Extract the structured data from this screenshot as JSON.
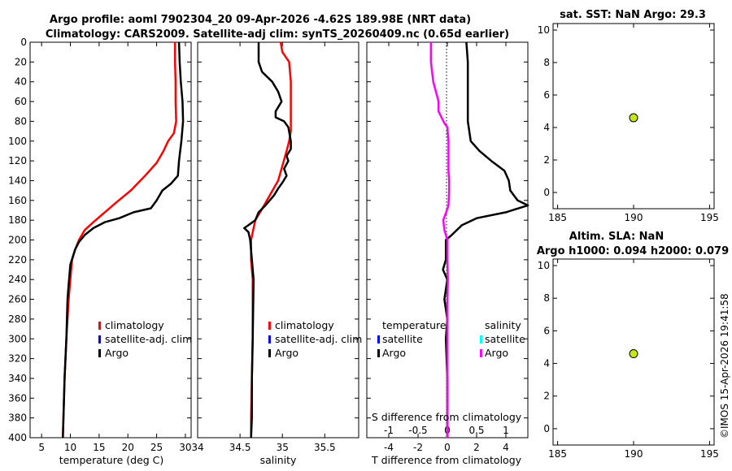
{
  "header": {
    "title_line1": "Argo profile: aoml 7902304_20 09-Apr-2026 -4.62S 189.98E (NRT data)",
    "title_line2": "Climatology: CARS2009. Satellite-adj clim: synTS_20260409.nc (0.65d earlier)"
  },
  "watermark": "©IMOS 15-Apr-2026 19:41:58",
  "colors": {
    "climatology": "#ff0000",
    "satellite": "#0000ff",
    "argo": "#000000",
    "salinity_satellite": "#00ffff",
    "salinity_argo": "#ff00ff",
    "marker_fill": "#c8e614"
  },
  "chart_data": [
    {
      "name": "temperature-profile",
      "type": "line",
      "xlabel": "temperature (deg C)",
      "ylabel": "",
      "xlim": [
        3,
        31
      ],
      "ylim": [
        0,
        400
      ],
      "xticks": [
        5,
        10,
        15,
        20,
        25,
        30
      ],
      "yticks": [
        0,
        20,
        40,
        60,
        80,
        100,
        120,
        140,
        160,
        180,
        200,
        220,
        240,
        260,
        280,
        300,
        320,
        340,
        360,
        380,
        400
      ],
      "legend": [
        "climatology",
        "satellite-adj. clim",
        "Argo"
      ],
      "series": [
        {
          "name": "climatology",
          "points": [
            [
              28.2,
              0
            ],
            [
              28.2,
              20
            ],
            [
              28.3,
              40
            ],
            [
              28.3,
              60
            ],
            [
              28.4,
              80
            ],
            [
              28.0,
              92
            ],
            [
              27.0,
              100
            ],
            [
              26.2,
              110
            ],
            [
              25.0,
              122
            ],
            [
              23.0,
              135
            ],
            [
              20.5,
              150
            ],
            [
              18.0,
              162
            ],
            [
              16.0,
              172
            ],
            [
              14.0,
              182
            ],
            [
              12.5,
              190
            ],
            [
              11.5,
              200
            ],
            [
              10.8,
              210
            ],
            [
              10.3,
              220
            ],
            [
              10.0,
              240
            ],
            [
              9.7,
              260
            ],
            [
              9.3,
              300
            ],
            [
              9.0,
              340
            ],
            [
              8.8,
              380
            ],
            [
              8.7,
              400
            ]
          ]
        },
        {
          "name": "Argo",
          "points": [
            [
              28.9,
              0
            ],
            [
              29.0,
              20
            ],
            [
              29.2,
              40
            ],
            [
              29.5,
              60
            ],
            [
              29.6,
              80
            ],
            [
              29.3,
              100
            ],
            [
              28.9,
              120
            ],
            [
              28.7,
              135
            ],
            [
              27.5,
              143
            ],
            [
              26.0,
              150
            ],
            [
              25.0,
              160
            ],
            [
              24.0,
              168
            ],
            [
              21.0,
              172
            ],
            [
              18.5,
              178
            ],
            [
              16.0,
              182
            ],
            [
              14.0,
              188
            ],
            [
              12.5,
              195
            ],
            [
              11.5,
              202
            ],
            [
              10.8,
              210
            ],
            [
              10.0,
              225
            ],
            [
              9.7,
              245
            ],
            [
              9.5,
              260
            ],
            [
              9.3,
              300
            ],
            [
              9.0,
              340
            ],
            [
              8.8,
              380
            ],
            [
              8.7,
              400
            ]
          ]
        }
      ]
    },
    {
      "name": "salinity-profile",
      "type": "line",
      "xlabel": "salinity",
      "xlim": [
        34,
        35.9
      ],
      "ylim": [
        0,
        400
      ],
      "xticks": [
        34,
        34.5,
        35,
        35.5
      ],
      "legend": [
        "climatology",
        "satellite-adj. clim",
        "Argo"
      ],
      "series": [
        {
          "name": "climatology",
          "points": [
            [
              34.98,
              0
            ],
            [
              35.0,
              10
            ],
            [
              35.08,
              20
            ],
            [
              35.1,
              40
            ],
            [
              35.1,
              60
            ],
            [
              35.1,
              90
            ],
            [
              35.08,
              100
            ],
            [
              35.05,
              110
            ],
            [
              35.0,
              125
            ],
            [
              34.95,
              140
            ],
            [
              34.85,
              155
            ],
            [
              34.75,
              170
            ],
            [
              34.68,
              180
            ],
            [
              34.63,
              200
            ],
            [
              34.63,
              220
            ],
            [
              34.65,
              240
            ],
            [
              34.65,
              300
            ],
            [
              34.64,
              340
            ],
            [
              34.63,
              380
            ],
            [
              34.63,
              400
            ]
          ]
        },
        {
          "name": "Argo",
          "points": [
            [
              34.72,
              0
            ],
            [
              34.72,
              20
            ],
            [
              34.76,
              30
            ],
            [
              34.88,
              40
            ],
            [
              34.95,
              50
            ],
            [
              34.99,
              60
            ],
            [
              34.92,
              70
            ],
            [
              34.92,
              76
            ],
            [
              35.02,
              80
            ],
            [
              35.07,
              86
            ],
            [
              35.1,
              100
            ],
            [
              35.1,
              108
            ],
            [
              35.05,
              115
            ],
            [
              35.07,
              120
            ],
            [
              35.02,
              128
            ],
            [
              35.05,
              135
            ],
            [
              35.0,
              142
            ],
            [
              34.95,
              148
            ],
            [
              34.9,
              155
            ],
            [
              34.8,
              165
            ],
            [
              34.72,
              172
            ],
            [
              34.68,
              180
            ],
            [
              34.6,
              185
            ],
            [
              34.55,
              188
            ],
            [
              34.6,
              192
            ],
            [
              34.62,
              200
            ],
            [
              34.64,
              220
            ],
            [
              34.66,
              240
            ],
            [
              34.65,
              300
            ],
            [
              34.64,
              340
            ],
            [
              34.64,
              380
            ],
            [
              34.63,
              400
            ]
          ]
        }
      ]
    },
    {
      "name": "difference-profile",
      "type": "line",
      "xlabel": "T difference from climatology",
      "top_xlabel": "S difference from climatology",
      "xlim": [
        -5.5,
        5.5
      ],
      "top_xlim": [
        -1.375,
        1.375
      ],
      "ylim": [
        0,
        400
      ],
      "xticks": [
        -4,
        -2,
        0,
        2,
        4
      ],
      "top_xticks": [
        -1,
        -0.5,
        0,
        0.5,
        1
      ],
      "top_tick_labels": [
        "-1",
        "-0.5",
        "0",
        "0.5",
        "1"
      ],
      "legend_temperature_title": "temperature",
      "legend_salinity_title": "salinity",
      "legend_entries": [
        "satellite",
        "Argo"
      ],
      "series": [
        {
          "name": "T difference (Argo)",
          "axis": "bottom",
          "points": [
            [
              1.3,
              0
            ],
            [
              1.4,
              20
            ],
            [
              1.4,
              40
            ],
            [
              1.4,
              60
            ],
            [
              1.4,
              80
            ],
            [
              1.6,
              100
            ],
            [
              2.2,
              110
            ],
            [
              3.0,
              120
            ],
            [
              3.9,
              130
            ],
            [
              4.2,
              140
            ],
            [
              4.3,
              150
            ],
            [
              4.8,
              160
            ],
            [
              5.5,
              165
            ],
            [
              4.0,
              172
            ],
            [
              2.0,
              178
            ],
            [
              1.0,
              185
            ],
            [
              0.3,
              195
            ],
            [
              -0.1,
              200
            ],
            [
              -0.1,
              220
            ],
            [
              -0.3,
              230
            ],
            [
              0.0,
              240
            ],
            [
              -0.2,
              260
            ],
            [
              0.0,
              280
            ],
            [
              -0.1,
              300
            ],
            [
              0.0,
              340
            ],
            [
              0.0,
              380
            ],
            [
              0.0,
              400
            ]
          ]
        },
        {
          "name": "S difference (Argo)",
          "axis": "top",
          "points": [
            [
              -0.28,
              0
            ],
            [
              -0.28,
              20
            ],
            [
              -0.24,
              40
            ],
            [
              -0.15,
              60
            ],
            [
              -0.15,
              70
            ],
            [
              -0.1,
              76
            ],
            [
              -0.05,
              82
            ],
            [
              0.0,
              86
            ],
            [
              0.02,
              100
            ],
            [
              0.02,
              110
            ],
            [
              0.02,
              120
            ],
            [
              0.02,
              130
            ],
            [
              0.03,
              140
            ],
            [
              0.03,
              150
            ],
            [
              0.02,
              165
            ],
            [
              -0.02,
              172
            ],
            [
              -0.07,
              180
            ],
            [
              -0.05,
              190
            ],
            [
              0.0,
              200
            ],
            [
              0.0,
              220
            ],
            [
              0.01,
              240
            ],
            [
              0.0,
              260
            ],
            [
              0.0,
              300
            ],
            [
              0.0,
              340
            ],
            [
              0.0,
              380
            ],
            [
              0.0,
              400
            ]
          ]
        }
      ]
    },
    {
      "name": "sst-panel",
      "type": "scatter",
      "title": "sat. SST: NaN Argo: 29.3",
      "xlim": [
        184.7,
        195.3
      ],
      "ylim": [
        -1,
        10.4
      ],
      "xticks": [
        185,
        190,
        195
      ],
      "yticks": [
        0,
        2,
        4,
        6,
        8,
        10
      ],
      "points": [
        [
          190,
          4.6
        ]
      ]
    },
    {
      "name": "sla-panel",
      "type": "scatter",
      "title": "Altim. SLA: NaN",
      "subtitle": "Argo h1000: 0.094 h2000: 0.079",
      "xlim": [
        184.7,
        195.3
      ],
      "ylim": [
        -1,
        10.4
      ],
      "xticks": [
        185,
        190,
        195
      ],
      "yticks": [
        0,
        2,
        4,
        6,
        8,
        10
      ],
      "points": [
        [
          190,
          4.6
        ]
      ]
    }
  ]
}
